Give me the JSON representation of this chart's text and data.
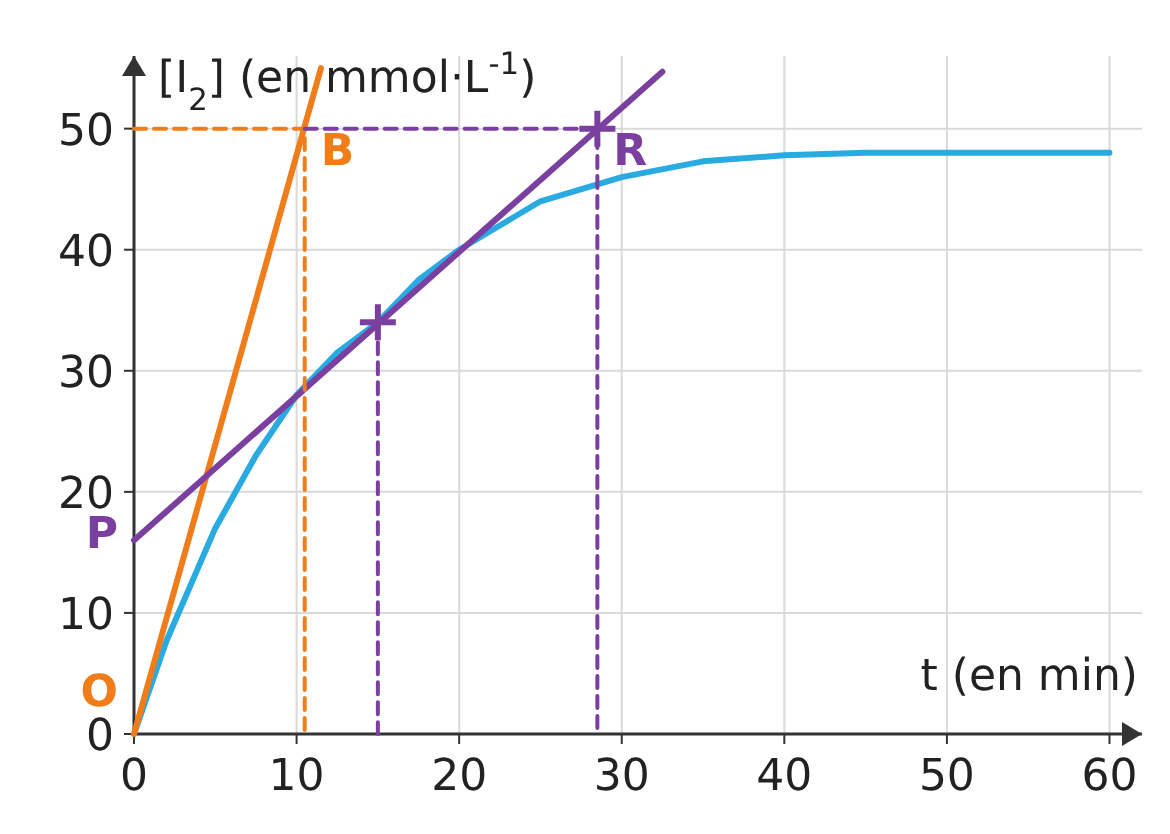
{
  "chart_data": {
    "type": "line",
    "xlabel": "t (en min)",
    "ylabel": "[I$_{2}$] (en mmol·L$^{-1}$)",
    "xlim": [
      0,
      62
    ],
    "ylim": [
      0,
      56
    ],
    "xticks": [
      0,
      10,
      20,
      30,
      40,
      50,
      60
    ],
    "yticks": [
      0,
      10,
      20,
      30,
      40,
      50
    ],
    "grid": true,
    "line_style": "solid",
    "series": [
      {
        "color": "#29abe2",
        "x": [
          0,
          2,
          5,
          7.5,
          10,
          12.5,
          15,
          17.5,
          20,
          22.5,
          25,
          30,
          35,
          40,
          45,
          50,
          55,
          60
        ],
        "values": [
          0,
          7.7,
          17,
          23,
          28,
          31.5,
          34,
          37.5,
          40,
          42,
          44,
          46,
          47.3,
          47.8,
          48,
          48,
          48,
          48
        ]
      },
      {
        "color": "#f07d1a",
        "x": [
          0,
          11.5
        ],
        "values": [
          0,
          55
        ]
      },
      {
        "color": "#7b3fa0",
        "x": [
          0,
          32.5
        ],
        "values": [
          16,
          54.7
        ]
      },
      {
        "color": "#f07d1a",
        "line_style": "dashed",
        "x": [
          0,
          10.5,
          10.5
        ],
        "values": [
          50,
          50,
          0
        ]
      },
      {
        "color": "#7b3fa0",
        "line_style": "dashed",
        "x": [
          10.5,
          28.5,
          28.5
        ],
        "values": [
          50,
          50,
          0
        ]
      },
      {
        "color": "#7b3fa0",
        "line_style": "dashed",
        "x": [
          15,
          15
        ],
        "values": [
          34,
          0
        ]
      },
      {
        "type": "scatter",
        "marker": "cross",
        "color": "#7b3fa0",
        "x": [
          15,
          28.5
        ],
        "values": [
          34,
          50
        ]
      }
    ],
    "annotations": [
      {
        "text": "O",
        "x": 0,
        "y": 0
      },
      {
        "text": "P",
        "x": 0,
        "y": 16
      },
      {
        "text": "B",
        "x": 10.5,
        "y": 50
      },
      {
        "text": "R",
        "x": 28.5,
        "y": 50
      }
    ]
  }
}
